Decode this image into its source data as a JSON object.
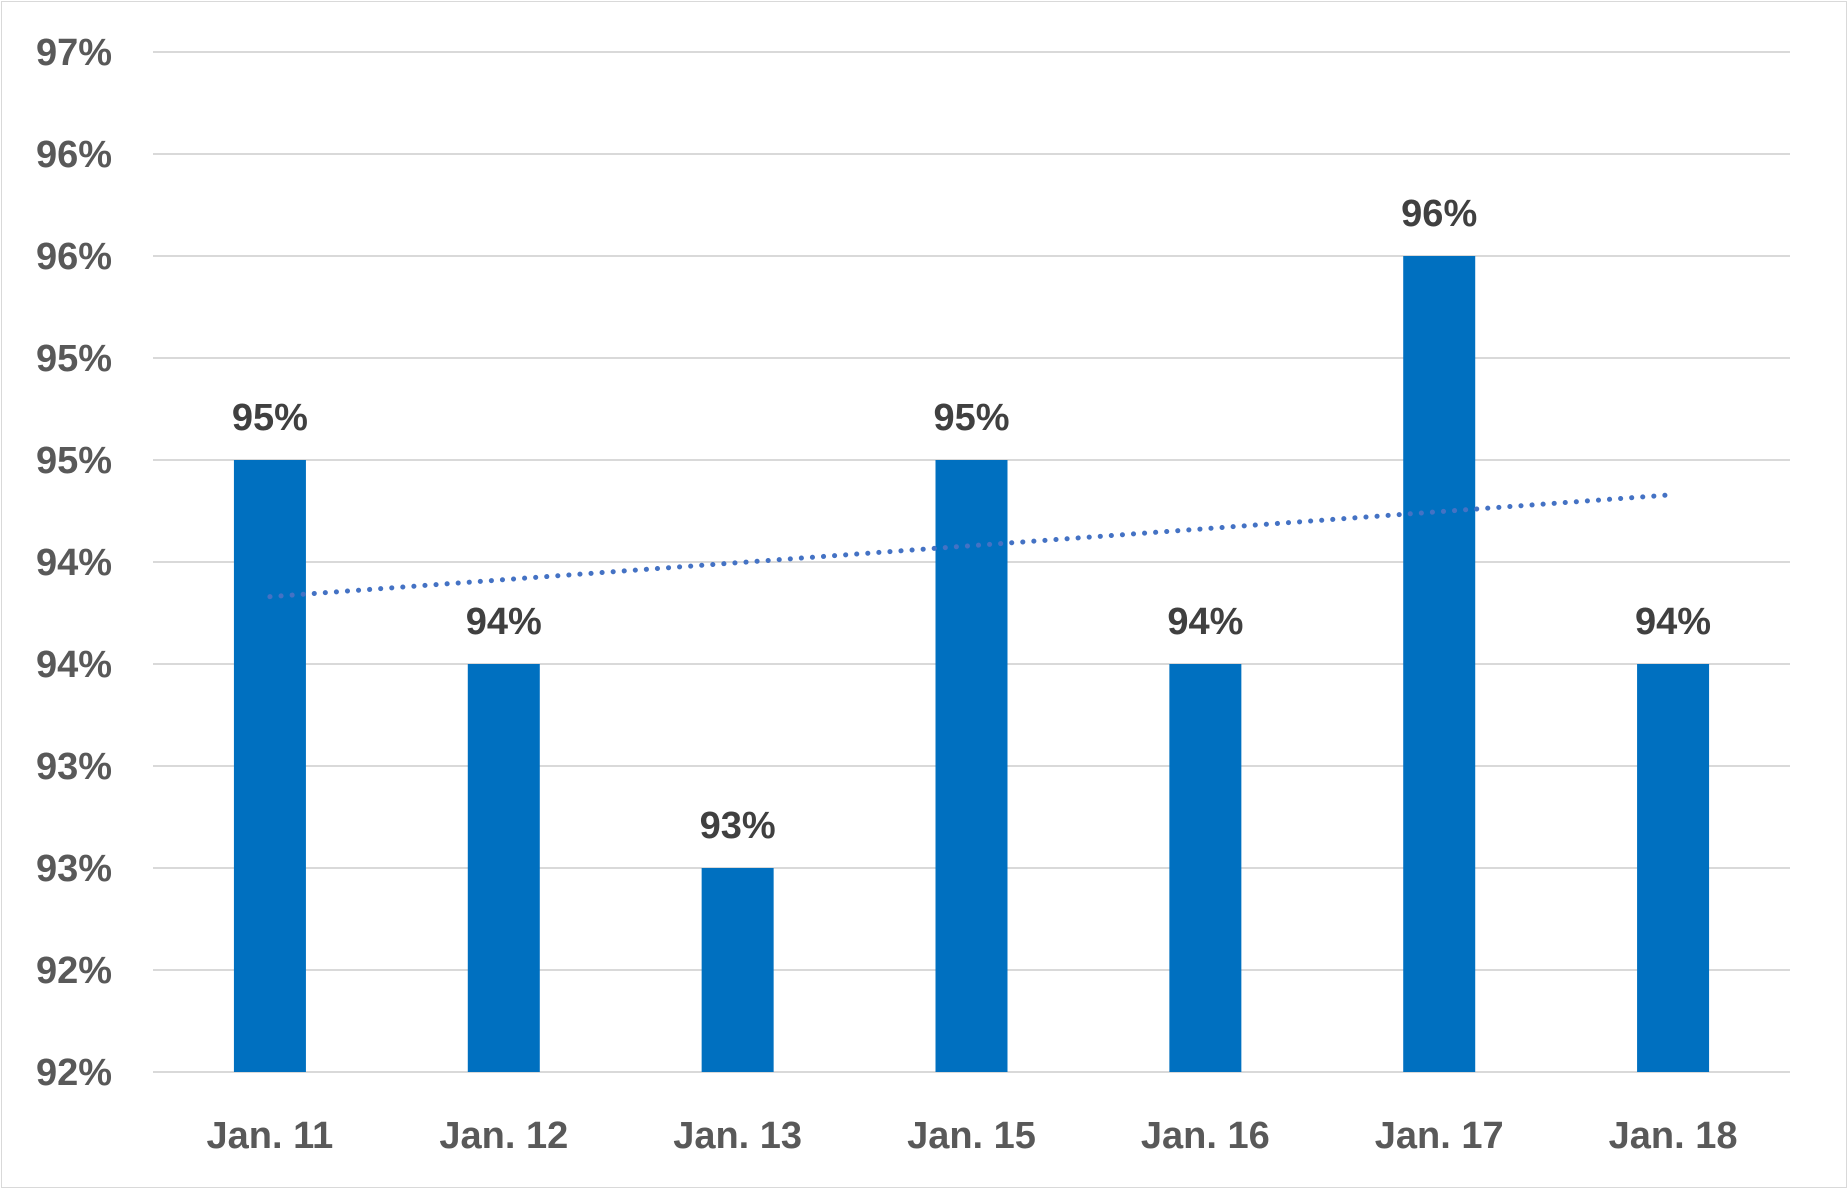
{
  "chart_data": {
    "type": "bar",
    "title": "",
    "xlabel": "",
    "ylabel": "",
    "categories": [
      "Jan. 11",
      "Jan. 12",
      "Jan. 13",
      "Jan. 15",
      "Jan. 16",
      "Jan. 17",
      "Jan. 18"
    ],
    "values": [
      0.95,
      0.94,
      0.93,
      0.95,
      0.94,
      0.96,
      0.94
    ],
    "data_labels": [
      "95%",
      "94%",
      "93%",
      "95%",
      "94%",
      "96%",
      "94%"
    ],
    "ylim": [
      0.92,
      0.97
    ],
    "y_ticks": [
      0.92,
      0.925,
      0.93,
      0.935,
      0.94,
      0.945,
      0.95,
      0.955,
      0.96,
      0.965,
      0.97
    ],
    "y_tick_labels": [
      "92%",
      "92%",
      "93%",
      "93%",
      "94%",
      "94%",
      "95%",
      "95%",
      "96%",
      "96%",
      "97%"
    ],
    "grid": true,
    "bar_color": "#0070C0",
    "trendline": {
      "type": "linear",
      "style": "dotted",
      "color": "#4472C4",
      "start": 0.9433,
      "end": 0.9483
    }
  }
}
